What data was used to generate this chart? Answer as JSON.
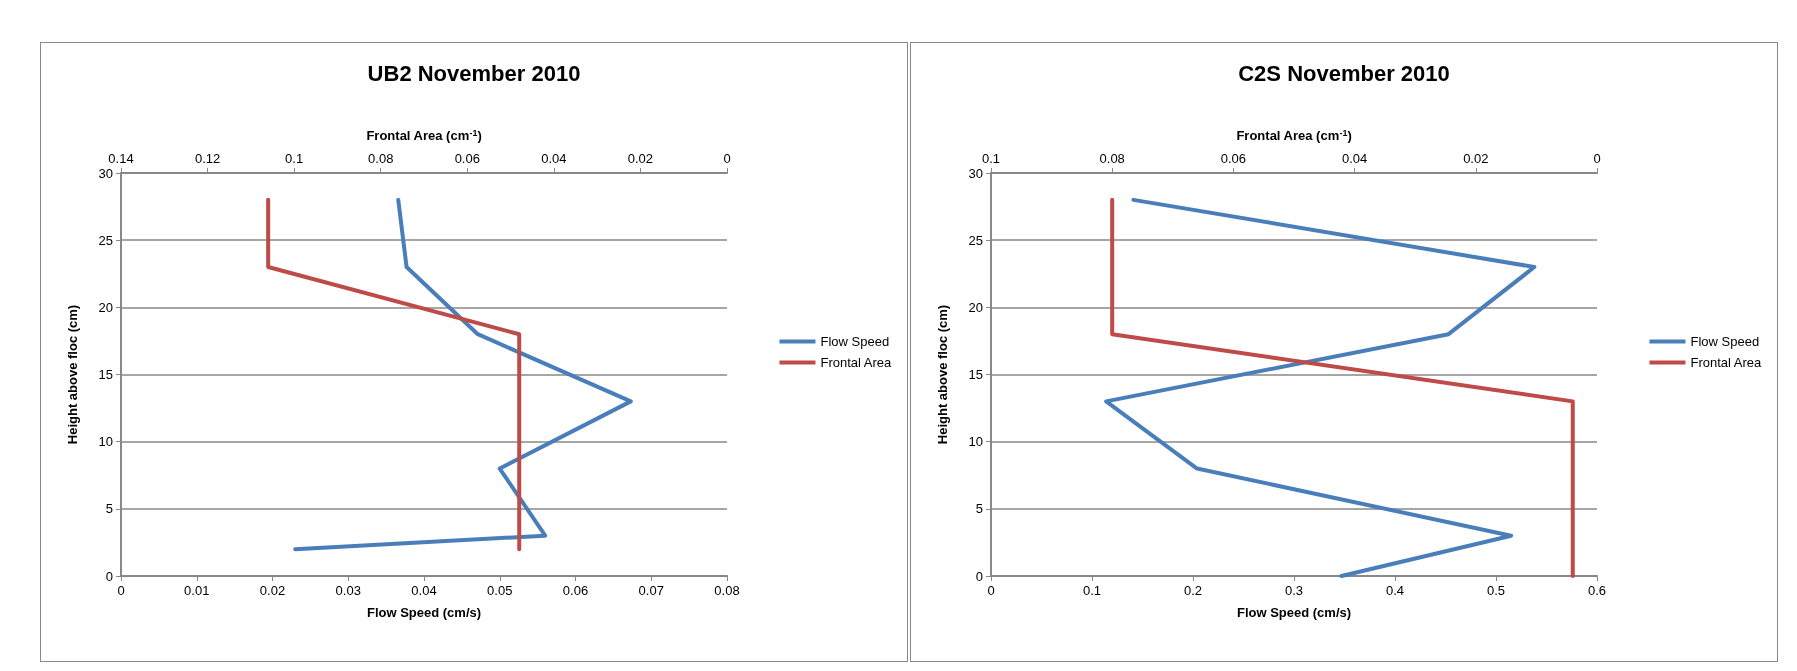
{
  "chart_data": [
    {
      "type": "line",
      "title": "UB2 November 2010",
      "xlabel": "Flow Speed (cm/s)",
      "x2label": "Frontal Area (cm$^{-1}$)",
      "ylabel": "Height above floc (cm)",
      "xlim": [
        0,
        0.08
      ],
      "xticks": [
        0,
        0.01,
        0.02,
        0.03,
        0.04,
        0.05,
        0.06,
        0.07,
        0.08
      ],
      "x2lim": [
        0.14,
        0
      ],
      "x2ticks": [
        0.14,
        0.12,
        0.1,
        0.08,
        0.06,
        0.04,
        0.02,
        0
      ],
      "ylim": [
        0,
        30
      ],
      "yticks": [
        0,
        5,
        10,
        15,
        20,
        25,
        30
      ],
      "grid": "y",
      "legend": "right",
      "marker": "none",
      "line_style": "solid",
      "series": [
        {
          "name": "Flow Speed",
          "color": "#4a7ebb",
          "x": [
            0.0366,
            0.0377,
            0.0471,
            0.0673,
            0.05,
            0.056,
            0.023
          ],
          "values": [
            28,
            23,
            18,
            13,
            8,
            3,
            2
          ]
        },
        {
          "name": "Frontal Area",
          "color": "#be4b48",
          "axis": "x2",
          "x": [
            0.106,
            0.106,
            0.048,
            0.048,
            0.048,
            0.048,
            0.048
          ],
          "values": [
            28,
            23,
            18,
            13,
            8,
            3,
            2
          ]
        }
      ]
    },
    {
      "type": "line",
      "title": "C2S November 2010",
      "xlabel": "Flow Speed (cm/s)",
      "x2label": "Frontal Area (cm$^{-1}$)",
      "ylabel": "Height above floc (cm)",
      "xlim": [
        0,
        0.6
      ],
      "xticks": [
        0,
        0.1,
        0.2,
        0.3,
        0.4,
        0.5,
        0.6
      ],
      "x2lim": [
        0.1,
        0
      ],
      "x2ticks": [
        0.1,
        0.08,
        0.06,
        0.04,
        0.02,
        0
      ],
      "ylim": [
        0,
        30
      ],
      "yticks": [
        0,
        5,
        10,
        15,
        20,
        25,
        30
      ],
      "grid": "y",
      "legend": "right",
      "marker": "none",
      "line_style": "solid",
      "series": [
        {
          "name": "Flow Speed",
          "color": "#4a7ebb",
          "x": [
            0.141,
            0.538,
            0.453,
            0.114,
            0.204,
            0.515,
            0.347
          ],
          "values": [
            28,
            23,
            18,
            13,
            8,
            3,
            0
          ]
        },
        {
          "name": "Frontal Area",
          "color": "#be4b48",
          "axis": "x2",
          "x": [
            0.08,
            0.08,
            0.004,
            0.004,
            0.004
          ],
          "values": [
            28,
            18,
            13,
            3,
            0
          ]
        }
      ]
    }
  ]
}
